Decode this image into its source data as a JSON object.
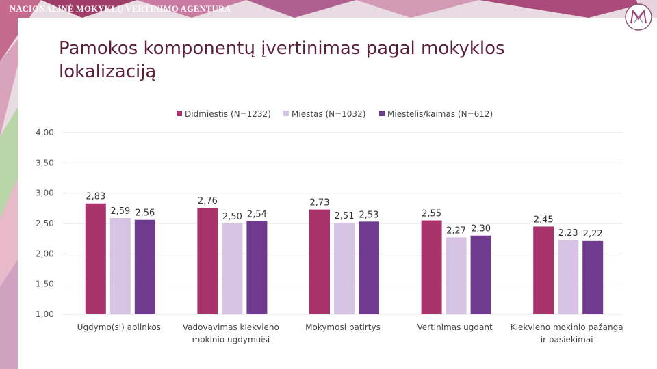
{
  "header": {
    "agency_name": "NACIONALINĖ MOKYKLŲ VERTINIMO AGENTŪRA"
  },
  "slide": {
    "title": "Pamokos komponentų įvertinimas pagal mokyklos lokalizaciją"
  },
  "colors": {
    "accent": "#a8336a",
    "title": "#5c1f3a",
    "series": [
      "#a8336a",
      "#d7c3e3",
      "#6e3b8f"
    ]
  },
  "chart_data": {
    "type": "bar",
    "title": "",
    "xlabel": "",
    "ylabel": "",
    "ylim": [
      1.0,
      4.0
    ],
    "yticks": [
      "1,00",
      "1,50",
      "2,00",
      "2,50",
      "3,00",
      "3,50",
      "4,00"
    ],
    "ytick_values": [
      1.0,
      1.5,
      2.0,
      2.5,
      3.0,
      3.5,
      4.0
    ],
    "grid": true,
    "legend_position": "top",
    "categories": [
      [
        "Ugdymo(si) aplinkos"
      ],
      [
        "Vadovavimas kiekvieno",
        "mokinio ugdymuisi"
      ],
      [
        "Mokymosi patirtys"
      ],
      [
        "Vertinimas ugdant"
      ],
      [
        "Kiekvieno mokinio pažanga",
        "ir pasiekimai"
      ]
    ],
    "series": [
      {
        "name": "Didmiestis (N=1232)",
        "values": [
          2.83,
          2.76,
          2.73,
          2.55,
          2.45
        ],
        "labels": [
          "2,83",
          "2,76",
          "2,73",
          "2,55",
          "2,45"
        ]
      },
      {
        "name": "Miestas (N=1032)",
        "values": [
          2.59,
          2.5,
          2.51,
          2.27,
          2.23
        ],
        "labels": [
          "2,59",
          "2,50",
          "2,51",
          "2,27",
          "2,23"
        ]
      },
      {
        "name": "Miestelis/kaimas (N=612)",
        "values": [
          2.56,
          2.54,
          2.53,
          2.3,
          2.22
        ],
        "labels": [
          "2,56",
          "2,54",
          "2,53",
          "2,30",
          "2,22"
        ]
      }
    ]
  }
}
